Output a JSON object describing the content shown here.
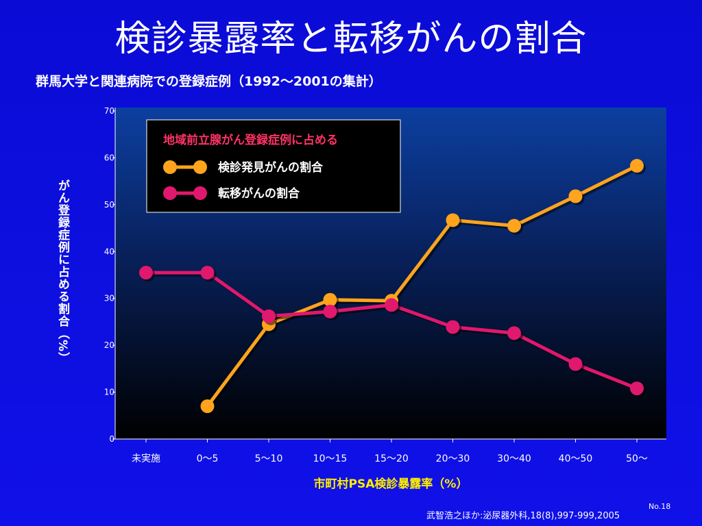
{
  "slide": {
    "title": "検診暴露率と転移がんの割合",
    "subtitle": "群馬大学と関連病院での登録症例（1992〜2001の集計）",
    "slide_number": "No.18",
    "citation": "武智浩之ほか:泌尿器外科,18(8),997-999,2005"
  },
  "chart_data": {
    "type": "line",
    "title": "",
    "xlabel": "市町村PSA検診暴露率（%）",
    "ylabel": "がん登録症例に占める割合（%）",
    "ylim": [
      0,
      70
    ],
    "yticks": [
      0,
      10,
      20,
      30,
      40,
      50,
      60,
      70
    ],
    "categories": [
      "未実施",
      "0〜5",
      "5〜10",
      "10〜15",
      "15〜20",
      "20〜30",
      "30〜40",
      "40〜50",
      "50〜"
    ],
    "legend": {
      "title": "地域前立腺がん登録症例に占める",
      "placement": "top-left"
    },
    "series": [
      {
        "name": "検診発見がんの割合",
        "color": "#ffa41c",
        "values": [
          null,
          7,
          24.5,
          29.7,
          29.5,
          46.7,
          45.5,
          51.8,
          58.3
        ]
      },
      {
        "name": "転移がんの割合",
        "color": "#e0186e",
        "values": [
          35.5,
          35.5,
          26.2,
          27.2,
          28.6,
          23.9,
          22.6,
          16,
          10.8
        ]
      }
    ],
    "colors": {
      "legend_title": "#ff3366",
      "axis_text": "#ffffff",
      "xlabel": "#ffee00"
    }
  }
}
